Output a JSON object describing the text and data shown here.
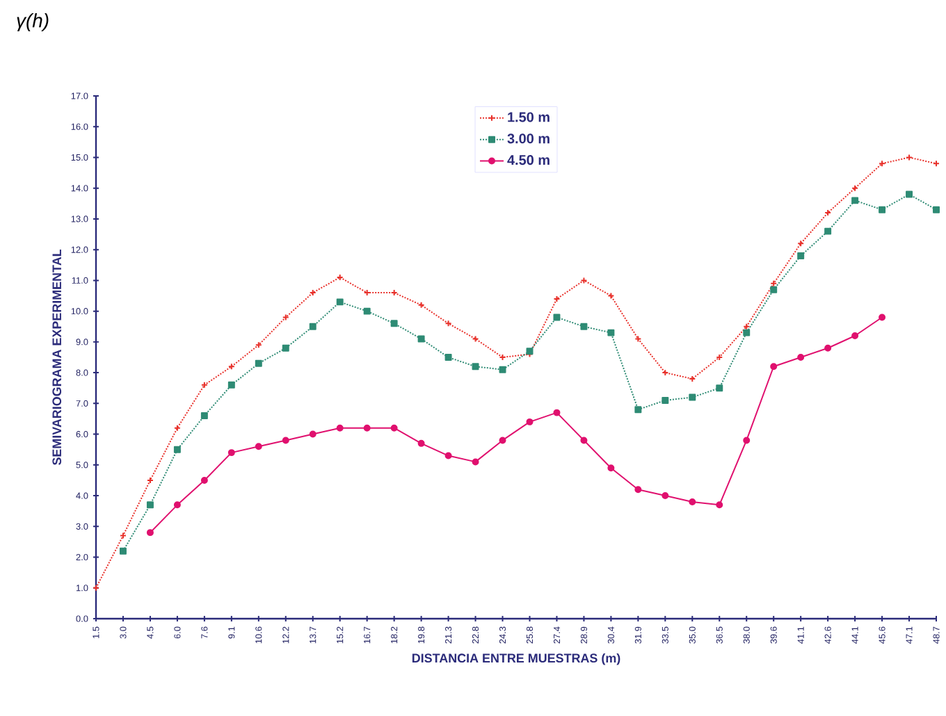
{
  "chart_data": {
    "type": "line",
    "title": "γ(h)",
    "xlabel": "DISTANCIA ENTRE MUESTRAS (m)",
    "ylabel": "SEMIVARIOGRAMA EXPERIMENTAL",
    "categories": [
      "1.5",
      "3.0",
      "4.5",
      "6.0",
      "7.6",
      "9.1",
      "10.6",
      "12.2",
      "13.7",
      "15.2",
      "16.7",
      "18.2",
      "19.8",
      "21.3",
      "22.8",
      "24.3",
      "25.8",
      "27.4",
      "28.9",
      "30.4",
      "31.9",
      "33.5",
      "35.0",
      "36.5",
      "38.0",
      "39.6",
      "41.1",
      "42.6",
      "44.1",
      "45.6",
      "47.1",
      "48.7"
    ],
    "series": [
      {
        "name": "1.50 m",
        "color": "#e8302a",
        "marker": "cross",
        "line_style": "dotted",
        "values": [
          1.0,
          2.7,
          4.5,
          6.2,
          7.6,
          8.2,
          8.9,
          9.8,
          10.6,
          11.1,
          10.6,
          10.6,
          10.2,
          9.6,
          9.1,
          8.5,
          8.6,
          10.4,
          11.0,
          10.5,
          9.1,
          8.0,
          7.8,
          8.5,
          9.5,
          10.9,
          12.2,
          13.2,
          14.0,
          14.8,
          15.0,
          14.8
        ]
      },
      {
        "name": "3.00 m",
        "color": "#2e8b74",
        "marker": "square",
        "line_style": "dotted",
        "values": [
          null,
          2.2,
          3.7,
          5.5,
          6.6,
          7.6,
          8.3,
          8.8,
          9.5,
          10.3,
          10.0,
          9.6,
          9.1,
          8.5,
          8.2,
          8.1,
          8.7,
          9.8,
          9.5,
          9.3,
          6.8,
          7.1,
          7.2,
          7.5,
          9.3,
          10.7,
          11.8,
          12.6,
          13.6,
          13.3,
          13.8,
          13.3
        ]
      },
      {
        "name": "4.50 m",
        "color": "#e0106e",
        "marker": "circle",
        "line_style": "solid",
        "values": [
          null,
          null,
          2.8,
          3.7,
          4.5,
          5.4,
          5.6,
          5.8,
          6.0,
          6.2,
          6.2,
          6.2,
          5.7,
          5.3,
          5.1,
          5.8,
          6.4,
          6.7,
          5.8,
          4.9,
          4.2,
          4.0,
          3.8,
          3.7,
          5.8,
          8.2,
          8.5,
          8.8,
          9.2,
          9.8,
          null,
          null
        ]
      }
    ],
    "ylim": [
      0,
      17
    ],
    "yticks": [
      {
        "value": 0,
        "label": "0.0"
      },
      {
        "value": 1,
        "label": "1.0"
      },
      {
        "value": 2,
        "label": "2.0"
      },
      {
        "value": 3,
        "label": "3.0"
      },
      {
        "value": 4,
        "label": "4.0"
      },
      {
        "value": 5,
        "label": "5.0"
      },
      {
        "value": 6,
        "label": "6.0"
      },
      {
        "value": 7,
        "label": "7.0"
      },
      {
        "value": 8,
        "label": "8.0"
      },
      {
        "value": 9,
        "label": "9.0"
      },
      {
        "value": 10,
        "label": "10.0"
      },
      {
        "value": 11,
        "label": "11.0"
      },
      {
        "value": 12,
        "label": "12.0"
      },
      {
        "value": 13,
        "label": "13.0"
      },
      {
        "value": 14,
        "label": "14.0"
      },
      {
        "value": 15,
        "label": "15.0"
      },
      {
        "value": 16,
        "label": "16.0"
      },
      {
        "value": 17,
        "label": "17.0"
      }
    ],
    "legend": "top",
    "grid": false
  }
}
